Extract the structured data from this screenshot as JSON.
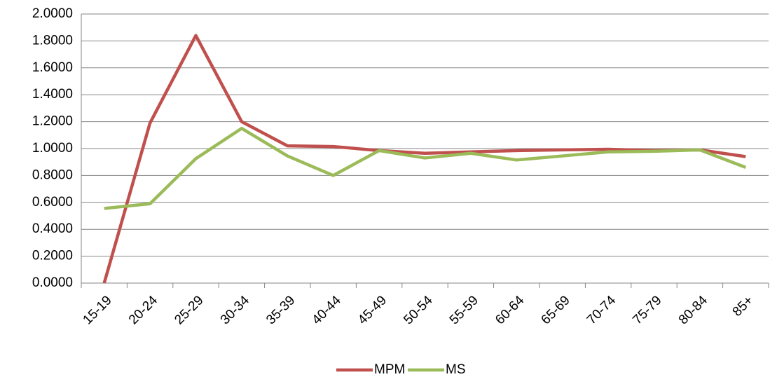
{
  "chart_data": {
    "type": "line",
    "categories": [
      "15-19",
      "20-24",
      "25-29",
      "30-34",
      "35-39",
      "40-44",
      "45-49",
      "50-54",
      "55-59",
      "60-64",
      "65-69",
      "70-74",
      "75-79",
      "80-84",
      "85+"
    ],
    "series": [
      {
        "name": "MPM",
        "color": "#c0504d",
        "values": [
          0,
          1.19,
          1.84,
          1.2,
          1.02,
          1.015,
          0.985,
          0.965,
          0.975,
          0.985,
          0.99,
          0.995,
          0.985,
          0.99,
          0.94
        ]
      },
      {
        "name": "MS",
        "color": "#9bbb59",
        "values": [
          0.555,
          0.59,
          0.925,
          1.15,
          0.945,
          0.8,
          0.985,
          0.93,
          0.965,
          0.915,
          0.945,
          0.975,
          0.98,
          0.99,
          0.86
        ]
      }
    ],
    "ylim": [
      0,
      2
    ],
    "yticks": [
      {
        "value": 0,
        "label": "0.0000"
      },
      {
        "value": 0.2,
        "label": "0.2000"
      },
      {
        "value": 0.4,
        "label": "0.4000"
      },
      {
        "value": 0.6,
        "label": "0.6000"
      },
      {
        "value": 0.8,
        "label": "0.8000"
      },
      {
        "value": 1,
        "label": "1.0000"
      },
      {
        "value": 1.2,
        "label": "1.2000"
      },
      {
        "value": 1.4,
        "label": "1.4000"
      },
      {
        "value": 1.6,
        "label": "1.6000"
      },
      {
        "value": 1.8,
        "label": "1.8000"
      },
      {
        "value": 2,
        "label": "2.0000"
      }
    ],
    "grid": true,
    "legend": "bottom"
  }
}
